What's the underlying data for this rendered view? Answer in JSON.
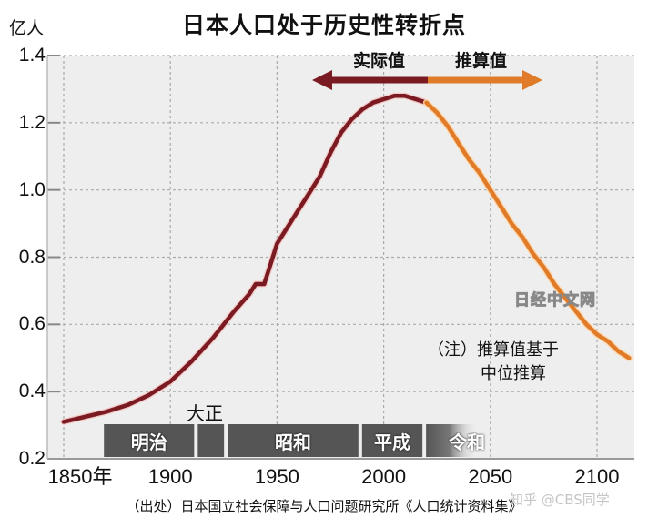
{
  "header": {
    "title": "日本人口处于历史性转折点",
    "unit_label": "亿人"
  },
  "axes": {
    "y_ticks": [
      "1.4",
      "1.2",
      "1.0",
      "0.8",
      "0.6",
      "0.4",
      "0.2"
    ],
    "x_ticks": [
      "1850年",
      "1900",
      "1950",
      "2000",
      "2050",
      "2100"
    ]
  },
  "legend": {
    "actual_label": "实际值",
    "projected_label": "推算值",
    "actual_color": "#7a1a22",
    "projected_color": "#e07b2a"
  },
  "eras": [
    {
      "label": "明治",
      "start": 1868,
      "end": 1912
    },
    {
      "label": "",
      "start": 1912,
      "end": 1926
    },
    {
      "label": "昭和",
      "start": 1926,
      "end": 1989
    },
    {
      "label": "平成",
      "start": 1989,
      "end": 2019
    },
    {
      "label": "令和",
      "start": 2019,
      "end": 2045
    }
  ],
  "taisho_label": "大正",
  "note": {
    "line1": "（注）推算值基于",
    "line2": "中位推算"
  },
  "watermark": "日经中文网",
  "watermark2": "知乎 @CBS同学",
  "source": "（出处）日本国立社会保障与人口问题研究所《人口统计资料集》",
  "chart_data": {
    "type": "line",
    "title": "日本人口处于历史性转折点",
    "xlabel": "",
    "ylabel": "亿人",
    "xlim": [
      1850,
      2115
    ],
    "ylim": [
      0.2,
      1.4
    ],
    "grid": true,
    "legend_position": "top (arrow annotations)",
    "x_tick_labels": [
      "1850年",
      "1900",
      "1950",
      "2000",
      "2050",
      "2100"
    ],
    "y_tick_labels": [
      "0.2",
      "0.4",
      "0.6",
      "0.8",
      "1.0",
      "1.2",
      "1.4"
    ],
    "series": [
      {
        "name": "实际值",
        "color": "#7a1a22",
        "points": [
          [
            1850,
            0.31
          ],
          [
            1870,
            0.34
          ],
          [
            1880,
            0.36
          ],
          [
            1890,
            0.39
          ],
          [
            1900,
            0.43
          ],
          [
            1910,
            0.49
          ],
          [
            1920,
            0.56
          ],
          [
            1930,
            0.64
          ],
          [
            1937,
            0.69
          ],
          [
            1940,
            0.72
          ],
          [
            1944,
            0.72
          ],
          [
            1947,
            0.78
          ],
          [
            1950,
            0.84
          ],
          [
            1955,
            0.89
          ],
          [
            1960,
            0.94
          ],
          [
            1965,
            0.99
          ],
          [
            1970,
            1.04
          ],
          [
            1975,
            1.11
          ],
          [
            1980,
            1.17
          ],
          [
            1985,
            1.21
          ],
          [
            1990,
            1.24
          ],
          [
            1995,
            1.26
          ],
          [
            2000,
            1.27
          ],
          [
            2005,
            1.28
          ],
          [
            2010,
            1.28
          ],
          [
            2015,
            1.27
          ],
          [
            2020,
            1.26
          ]
        ]
      },
      {
        "name": "推算值",
        "color": "#e07b2a",
        "points": [
          [
            2020,
            1.26
          ],
          [
            2025,
            1.23
          ],
          [
            2030,
            1.19
          ],
          [
            2035,
            1.14
          ],
          [
            2040,
            1.09
          ],
          [
            2045,
            1.05
          ],
          [
            2050,
            1.0
          ],
          [
            2055,
            0.95
          ],
          [
            2060,
            0.9
          ],
          [
            2065,
            0.86
          ],
          [
            2070,
            0.81
          ],
          [
            2075,
            0.77
          ],
          [
            2080,
            0.72
          ],
          [
            2085,
            0.68
          ],
          [
            2090,
            0.64
          ],
          [
            2095,
            0.6
          ],
          [
            2100,
            0.57
          ],
          [
            2105,
            0.55
          ],
          [
            2110,
            0.52
          ],
          [
            2115,
            0.5
          ]
        ]
      }
    ],
    "annotations": [
      "实际值 ←",
      "→ 推算值",
      "大正",
      "（注）推算值基于中位推算",
      "日经中文网"
    ],
    "era_bands": [
      "明治",
      "大正",
      "昭和",
      "平成",
      "令和"
    ]
  }
}
